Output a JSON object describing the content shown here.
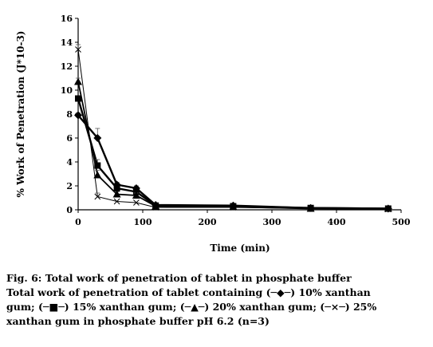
{
  "chart_data": {
    "type": "line",
    "xlabel": "Time (min)",
    "ylabel": "% Work of Penetration (J*10-3)",
    "xlim": [
      0,
      500
    ],
    "ylim": [
      0,
      16
    ],
    "xticks": [
      0,
      100,
      200,
      300,
      400,
      500
    ],
    "yticks": [
      0,
      2,
      4,
      6,
      8,
      10,
      12,
      14,
      16
    ],
    "grid": false,
    "x": [
      0,
      30,
      60,
      90,
      120,
      240,
      360,
      480
    ],
    "series": [
      {
        "marker": "diamond",
        "values": [
          7.9,
          6.0,
          2.1,
          1.8,
          0.4,
          0.35,
          0.15,
          0.1
        ],
        "errors": [
          0.2,
          0.8,
          0.2,
          0.2,
          0.05,
          0.05,
          0.05,
          0.05
        ]
      },
      {
        "marker": "square",
        "values": [
          9.3,
          3.7,
          1.8,
          1.5,
          0.35,
          0.3,
          0.15,
          0.1
        ],
        "errors": [
          0.2,
          0.5,
          0.2,
          0.2,
          0.05,
          0.05,
          0.05,
          0.05
        ]
      },
      {
        "marker": "triangle",
        "values": [
          10.7,
          2.9,
          1.3,
          1.2,
          0.3,
          0.25,
          0.1,
          0.1
        ],
        "errors": [
          0.3,
          0.4,
          0.2,
          0.2,
          0.05,
          0.05,
          0.05,
          0.05
        ]
      },
      {
        "marker": "cross",
        "values": [
          13.4,
          1.1,
          0.7,
          0.6,
          0.2,
          0.2,
          0.1,
          0.05
        ],
        "errors": [
          0.4,
          0.3,
          0.1,
          0.1,
          0.05,
          0.05,
          0.05,
          0.05
        ]
      }
    ]
  },
  "caption": {
    "title": "Fig. 6: Total work of penetration of tablet in phosphate buffer",
    "line1": "Total work of penetration of tablet containing (─◆─) 10% xanthan",
    "line2": "gum; (─■─) 15% xanthan gum; (─▲─) 20% xanthan gum; (─×─) 25%",
    "line3": "xanthan gum in phosphate buffer pH 6.2 (n=3)"
  }
}
